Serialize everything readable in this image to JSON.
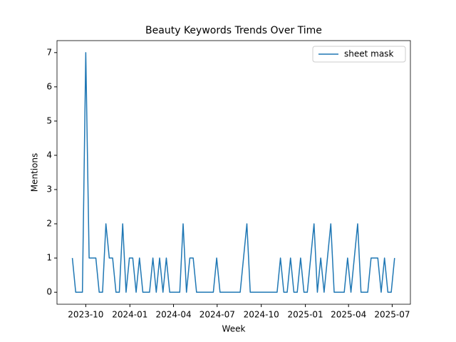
{
  "chart_data": {
    "type": "line",
    "title": "Beauty Keywords Trends Over Time",
    "xlabel": "Week",
    "ylabel": "Mentions",
    "x": [
      "2023-09-03",
      "2023-09-10",
      "2023-09-17",
      "2023-09-24",
      "2023-10-01",
      "2023-10-08",
      "2023-10-15",
      "2023-10-22",
      "2023-10-29",
      "2023-11-05",
      "2023-11-12",
      "2023-11-19",
      "2023-11-26",
      "2023-12-03",
      "2023-12-10",
      "2023-12-17",
      "2023-12-24",
      "2023-12-31",
      "2024-01-07",
      "2024-01-14",
      "2024-01-21",
      "2024-01-28",
      "2024-02-04",
      "2024-02-11",
      "2024-02-18",
      "2024-02-25",
      "2024-03-03",
      "2024-03-10",
      "2024-03-17",
      "2024-03-24",
      "2024-03-31",
      "2024-04-07",
      "2024-04-14",
      "2024-04-21",
      "2024-04-28",
      "2024-05-05",
      "2024-05-12",
      "2024-05-19",
      "2024-05-26",
      "2024-06-02",
      "2024-06-09",
      "2024-06-16",
      "2024-06-23",
      "2024-06-30",
      "2024-07-07",
      "2024-07-14",
      "2024-07-21",
      "2024-07-28",
      "2024-08-04",
      "2024-08-11",
      "2024-08-18",
      "2024-08-25",
      "2024-09-01",
      "2024-09-08",
      "2024-09-15",
      "2024-09-22",
      "2024-09-29",
      "2024-10-06",
      "2024-10-13",
      "2024-10-20",
      "2024-10-27",
      "2024-11-03",
      "2024-11-10",
      "2024-11-17",
      "2024-11-24",
      "2024-12-01",
      "2024-12-08",
      "2024-12-15",
      "2024-12-22",
      "2024-12-29",
      "2025-01-05",
      "2025-01-12",
      "2025-01-19",
      "2025-01-26",
      "2025-02-02",
      "2025-02-09",
      "2025-02-16",
      "2025-02-23",
      "2025-03-02",
      "2025-03-09",
      "2025-03-16",
      "2025-03-23",
      "2025-03-30",
      "2025-04-06",
      "2025-04-13",
      "2025-04-20",
      "2025-04-27",
      "2025-05-04",
      "2025-05-11",
      "2025-05-18",
      "2025-05-25",
      "2025-06-01",
      "2025-06-08",
      "2025-06-15",
      "2025-06-22",
      "2025-06-29",
      "2025-07-06"
    ],
    "series": [
      {
        "name": "sheet mask",
        "color": "#1f77b4",
        "values": [
          1,
          0,
          0,
          0,
          7,
          1,
          1,
          1,
          0,
          0,
          2,
          1,
          1,
          0,
          0,
          2,
          0,
          1,
          1,
          0,
          1,
          0,
          0,
          0,
          1,
          0,
          1,
          0,
          1,
          0,
          0,
          0,
          0,
          2,
          0,
          1,
          1,
          0,
          0,
          0,
          0,
          0,
          0,
          1,
          0,
          0,
          0,
          0,
          0,
          0,
          0,
          1,
          2,
          0,
          0,
          0,
          0,
          0,
          0,
          0,
          0,
          0,
          1,
          0,
          0,
          1,
          0,
          0,
          1,
          0,
          0,
          1,
          2,
          0,
          1,
          0,
          1,
          2,
          0,
          0,
          0,
          0,
          1,
          0,
          1,
          2,
          0,
          0,
          0,
          1,
          1,
          1,
          0,
          1,
          0,
          0,
          1
        ]
      }
    ],
    "xlim": [
      "2023-08-02",
      "2025-08-08"
    ],
    "xticks": [
      {
        "value": "2023-10-01",
        "label": "2023-10"
      },
      {
        "value": "2024-01-01",
        "label": "2024-01"
      },
      {
        "value": "2024-04-01",
        "label": "2024-04"
      },
      {
        "value": "2024-07-01",
        "label": "2024-07"
      },
      {
        "value": "2024-10-01",
        "label": "2024-10"
      },
      {
        "value": "2025-01-01",
        "label": "2025-01"
      },
      {
        "value": "2025-04-01",
        "label": "2025-04"
      },
      {
        "value": "2025-07-01",
        "label": "2025-07"
      }
    ],
    "ylim": [
      -0.35,
      7.35
    ],
    "yticks": [
      0,
      1,
      2,
      3,
      4,
      5,
      6,
      7
    ],
    "legend": "upper right",
    "grid": false
  }
}
